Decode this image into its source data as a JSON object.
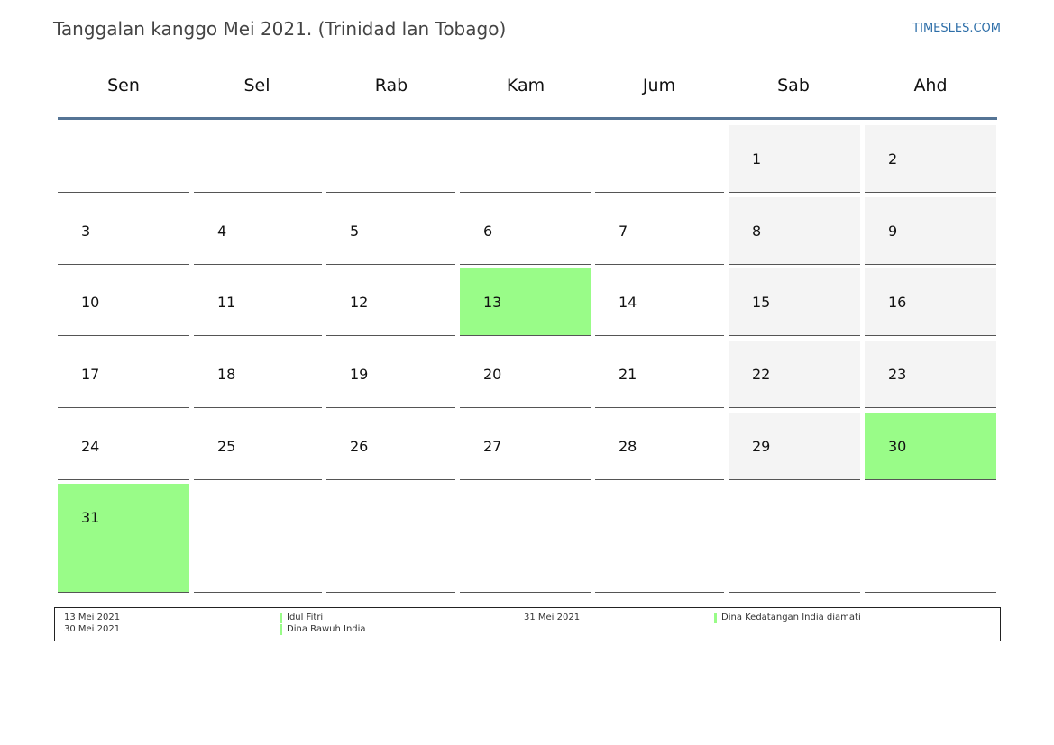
{
  "header": {
    "title": "Tanggalan kanggo Mei 2021. (Trinidad lan Tobago)",
    "site": "TIMESLES.COM"
  },
  "weekdays": [
    "Sen",
    "Sel",
    "Rab",
    "Kam",
    "Jum",
    "Sab",
    "Ahd"
  ],
  "calendar": {
    "rows": [
      [
        "",
        "",
        "",
        "",
        "",
        "1",
        "2"
      ],
      [
        "3",
        "4",
        "5",
        "6",
        "7",
        "8",
        "9"
      ],
      [
        "10",
        "11",
        "12",
        "13",
        "14",
        "15",
        "16"
      ],
      [
        "17",
        "18",
        "19",
        "20",
        "21",
        "22",
        "23"
      ],
      [
        "24",
        "25",
        "26",
        "27",
        "28",
        "29",
        "30"
      ],
      [
        "31",
        "",
        "",
        "",
        "",
        "",
        ""
      ]
    ],
    "holidays": [
      "13",
      "30",
      "31"
    ],
    "colors": {
      "holiday": "#99fc88",
      "weekend": "#f4f4f4",
      "rule": "#557495"
    }
  },
  "legend": {
    "left_dates": [
      "13 Mei 2021",
      "30 Mei 2021"
    ],
    "left_names": [
      "Idul Fitri",
      "Dina Rawuh India"
    ],
    "right_dates": [
      "31 Mei 2021"
    ],
    "right_names": [
      "Dina Kedatangan India diamati"
    ]
  }
}
